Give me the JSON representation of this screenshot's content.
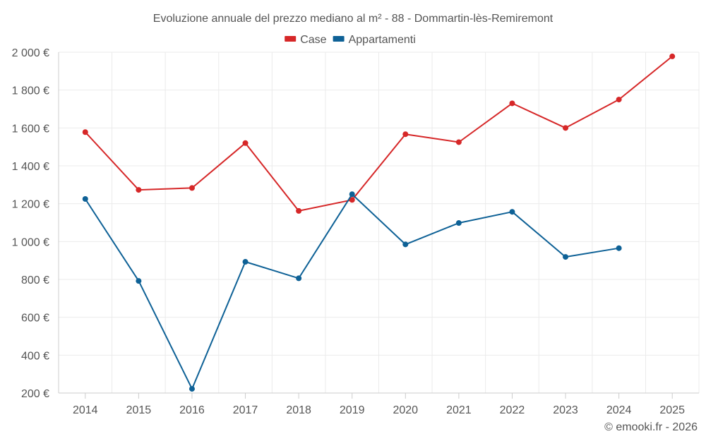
{
  "chart_data": {
    "type": "line",
    "title": "Evoluzione annuale del prezzo mediano al m² - 88 - Dommartin-lès-Remiremont",
    "categories": [
      "2014",
      "2015",
      "2016",
      "2017",
      "2018",
      "2019",
      "2020",
      "2021",
      "2022",
      "2023",
      "2024",
      "2025"
    ],
    "y_ticks": [
      200,
      400,
      600,
      800,
      1000,
      1200,
      1400,
      1600,
      1800,
      2000
    ],
    "y_tick_labels": [
      "200 €",
      "400 €",
      "600 €",
      "800 €",
      "1 000 €",
      "1 200 €",
      "1 400 €",
      "1 600 €",
      "1 800 €",
      "2 000 €"
    ],
    "ylim": [
      200,
      2000
    ],
    "grid": true,
    "legend_position": "top-center",
    "series": [
      {
        "name": "Case",
        "color": "#d62728",
        "values": [
          1578,
          1273,
          1283,
          1520,
          1162,
          1220,
          1567,
          1525,
          1730,
          1600,
          1750,
          1978
        ]
      },
      {
        "name": "Appartamenti",
        "color": "#0e6196",
        "values": [
          1225,
          792,
          222,
          893,
          806,
          1250,
          985,
          1098,
          1157,
          919,
          965,
          null
        ]
      }
    ],
    "credit": "© emooki.fr - 2026"
  }
}
